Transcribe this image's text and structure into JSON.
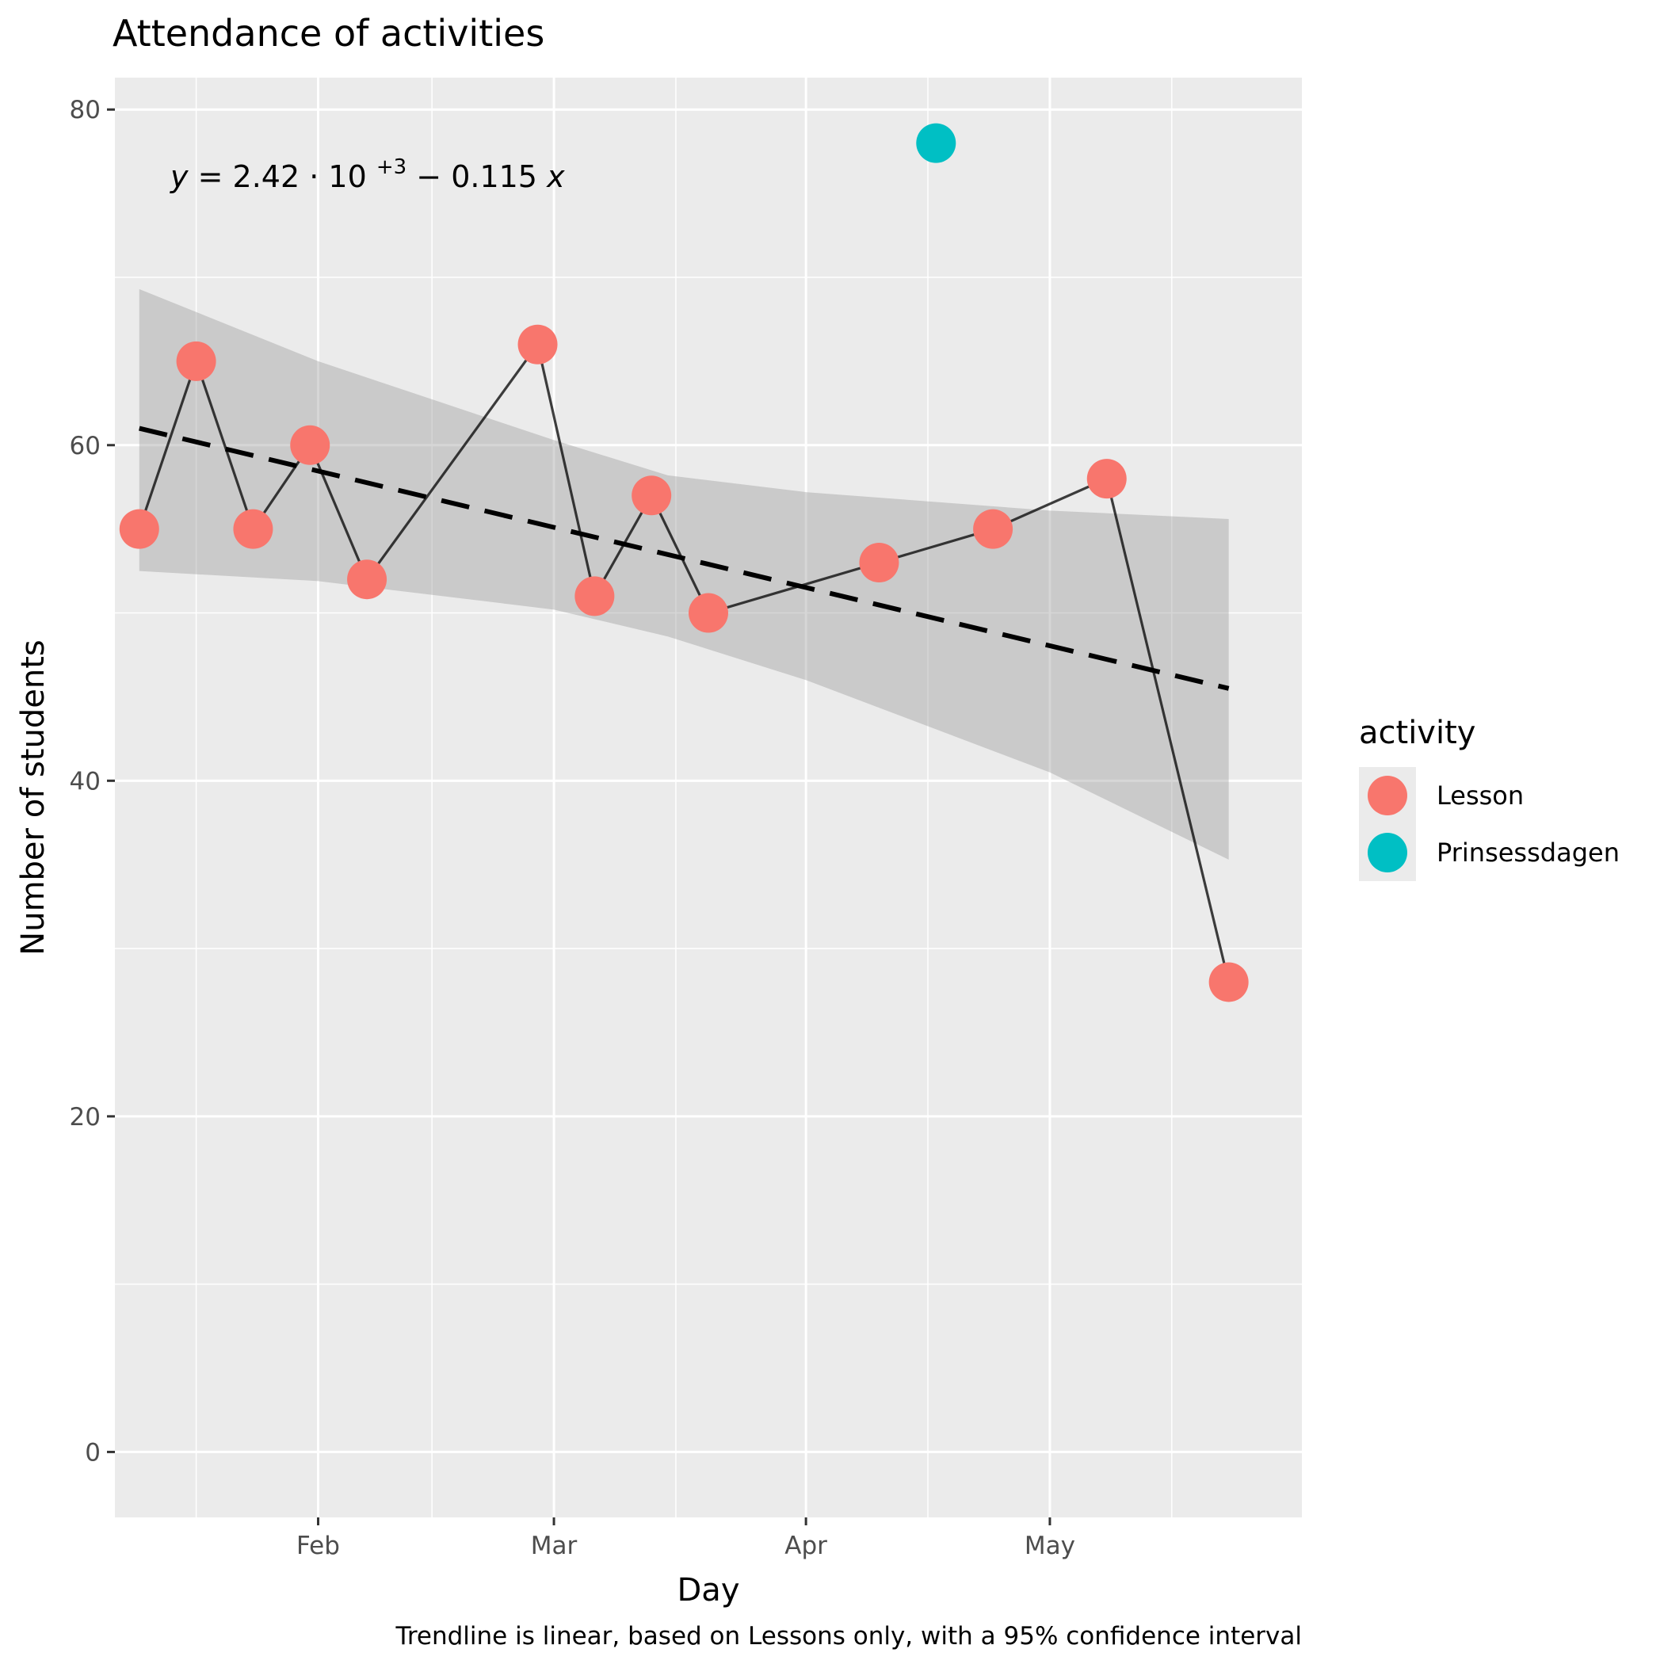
{
  "chart_data": {
    "type": "scatter",
    "title": "Attendance of activities",
    "xlabel": "Day",
    "ylabel": "Number of students",
    "caption": "Trendline is linear, based on Lessons only, with a 95% confidence interval",
    "x_tick_labels": [
      "Feb",
      "Mar",
      "Apr",
      "May"
    ],
    "x_ticks": [
      "2024-02-01",
      "2024-03-01",
      "2024-04-01",
      "2024-05-01"
    ],
    "xlim": [
      "2024-01-07",
      "2024-06-01"
    ],
    "y_ticks": [
      0,
      20,
      40,
      60,
      80
    ],
    "ylim": [
      -3.9,
      81.9
    ],
    "grid": true,
    "legend": {
      "title": "activity",
      "position": "right",
      "entries": [
        {
          "label": "Lesson",
          "color": "#F8766D"
        },
        {
          "label": "Prinsessdagen",
          "color": "#00BFC4"
        }
      ]
    },
    "series": [
      {
        "name": "Lesson",
        "color": "#F8766D",
        "connected": true,
        "points": [
          {
            "x": "2024-01-10",
            "y": 55
          },
          {
            "x": "2024-01-17",
            "y": 65
          },
          {
            "x": "2024-01-24",
            "y": 55
          },
          {
            "x": "2024-01-31",
            "y": 60
          },
          {
            "x": "2024-02-07",
            "y": 52
          },
          {
            "x": "2024-02-28",
            "y": 66
          },
          {
            "x": "2024-03-06",
            "y": 51
          },
          {
            "x": "2024-03-13",
            "y": 57
          },
          {
            "x": "2024-03-20",
            "y": 50
          },
          {
            "x": "2024-04-10",
            "y": 53
          },
          {
            "x": "2024-04-24",
            "y": 55
          },
          {
            "x": "2024-05-08",
            "y": 58
          },
          {
            "x": "2024-05-23",
            "y": 28
          }
        ]
      },
      {
        "name": "Prinsessdagen",
        "color": "#00BFC4",
        "connected": false,
        "points": [
          {
            "x": "2024-04-17",
            "y": 78
          }
        ]
      }
    ],
    "trendline": {
      "type": "linear",
      "equation": {
        "lhs": "y",
        "intercept": "2.42",
        "base": "10",
        "exponent": "+3",
        "slope": "0.115",
        "var": "x"
      },
      "start": {
        "x": "2024-01-10",
        "y": 61
      },
      "end": {
        "x": "2024-05-23",
        "y": 45.5
      },
      "confidence_band": [
        {
          "x": "2024-01-10",
          "lower": 52.5,
          "upper": 69.3
        },
        {
          "x": "2024-02-01",
          "lower": 51.9,
          "upper": 65.0
        },
        {
          "x": "2024-03-01",
          "lower": 50.2,
          "upper": 60.3
        },
        {
          "x": "2024-03-15",
          "lower": 48.6,
          "upper": 58.2
        },
        {
          "x": "2024-04-01",
          "lower": 46.0,
          "upper": 57.2
        },
        {
          "x": "2024-05-01",
          "lower": 40.5,
          "upper": 56.1
        },
        {
          "x": "2024-05-23",
          "lower": 35.3,
          "upper": 55.6
        }
      ]
    }
  }
}
